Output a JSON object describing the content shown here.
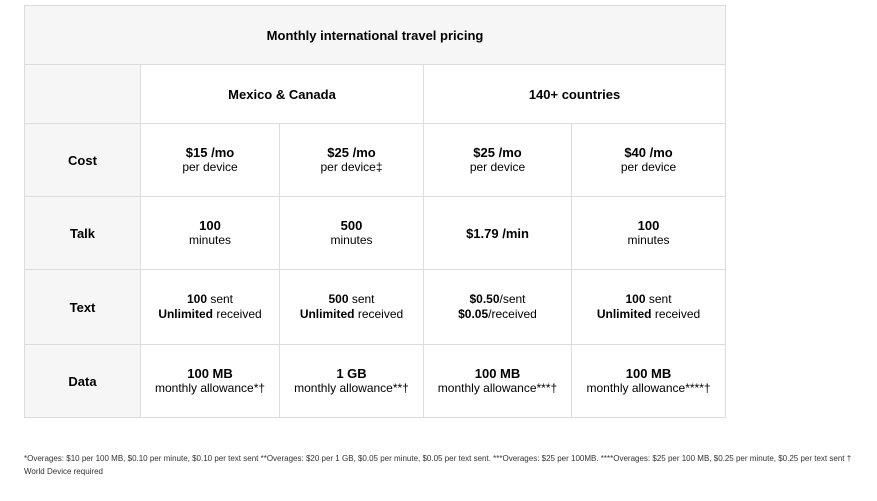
{
  "table": {
    "title": "Monthly international travel pricing",
    "regions": [
      "Mexico & Canada",
      "140+ countries"
    ],
    "rows": {
      "cost": {
        "label": "Cost",
        "cells": [
          {
            "main": "$15 /mo",
            "sub": "per device"
          },
          {
            "main": "$25 /mo",
            "sub": "per device‡"
          },
          {
            "main": "$25 /mo",
            "sub": "per device"
          },
          {
            "main": "$40 /mo",
            "sub": "per device"
          }
        ]
      },
      "talk": {
        "label": "Talk",
        "cells": [
          {
            "main": "100",
            "sub": "minutes"
          },
          {
            "main": "500",
            "sub": "minutes"
          },
          {
            "main": "$1.79 /min",
            "sub": ""
          },
          {
            "main": "100",
            "sub": "minutes"
          }
        ]
      },
      "text": {
        "label": "Text",
        "cells": [
          {
            "line1_bold": "100",
            "line1_rest": " sent",
            "line2_bold": "Unlimited",
            "line2_rest": " received"
          },
          {
            "line1_bold": "500",
            "line1_rest": " sent",
            "line2_bold": "Unlimited",
            "line2_rest": " received"
          },
          {
            "line1_bold": "$0.50",
            "line1_rest": "/sent",
            "line2_bold": "$0.05",
            "line2_rest": "/received"
          },
          {
            "line1_bold": "100",
            "line1_rest": " sent",
            "line2_bold": "Unlimited",
            "line2_rest": " received"
          }
        ]
      },
      "data": {
        "label": "Data",
        "cells": [
          {
            "main": "100 MB",
            "sub": "monthly allowance*†"
          },
          {
            "main": "1 GB",
            "sub": "monthly allowance**†"
          },
          {
            "main": "100 MB",
            "sub": "monthly allowance***†"
          },
          {
            "main": "100 MB",
            "sub": "monthly allowance****†"
          }
        ]
      }
    }
  },
  "footnote": "*Overages: $10 per 100 MB, $0.10 per minute, $0.10 per text sent **Overages: $20 per 1 GB, $0.05 per minute, $0.05 per text sent. ***Overages: $25 per 100MB. ****Overages: $25 per 100 MB, $0.25 per minute, $0.25 per text sent † World Device required"
}
